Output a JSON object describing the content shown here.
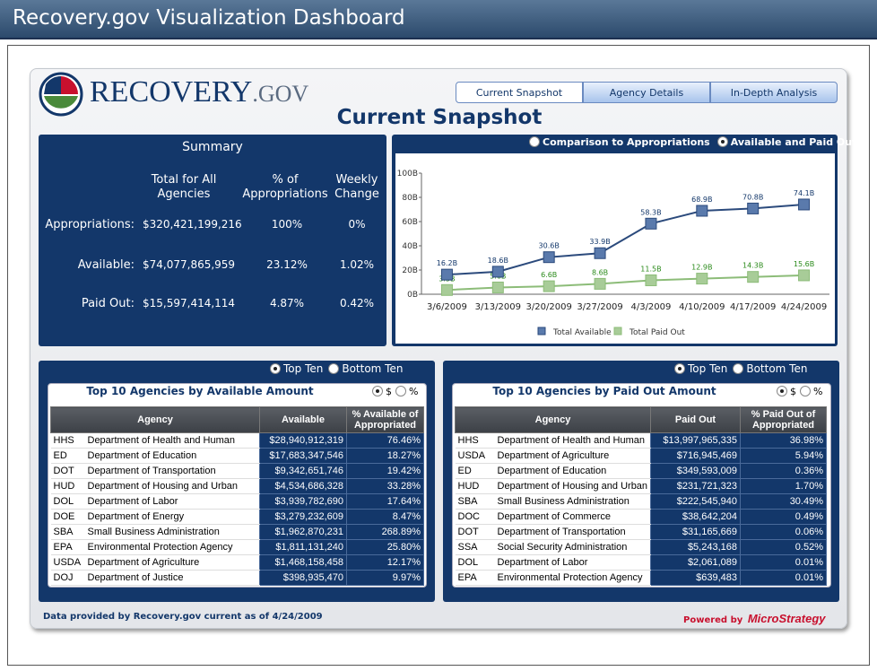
{
  "header": {
    "title": "Recovery.gov Visualization Dashboard"
  },
  "logo": {
    "name": "RECOVERY",
    "suffix": ".GOV"
  },
  "tabs": [
    "Current Snapshot",
    "Agency Details",
    "In-Depth Analysis"
  ],
  "page_title": "Current Snapshot",
  "summary": {
    "title": "Summary",
    "columns": [
      "Total for All Agencies",
      "% of Appropriations",
      "Weekly Change"
    ],
    "rows": [
      [
        "Appropriations:",
        "$320,421,199,216",
        "100%",
        "0%"
      ],
      [
        "Available:",
        "$74,077,865,959",
        "23.12%",
        "1.02%"
      ],
      [
        "Paid Out:",
        "$15,597,414,114",
        "4.87%",
        "0.42%"
      ]
    ]
  },
  "chart_options": [
    "Comparison to Appropriations",
    "Available and Paid Out"
  ],
  "chart_data": {
    "type": "line",
    "categories": [
      "3/6/2009",
      "3/13/2009",
      "3/20/2009",
      "3/27/2009",
      "4/3/2009",
      "4/10/2009",
      "4/17/2009",
      "4/24/2009"
    ],
    "ylim": [
      0,
      100
    ],
    "yticks": [
      {
        "value": 0,
        "label": "0B"
      },
      {
        "value": 20,
        "label": "20B"
      },
      {
        "value": 40,
        "label": "40B"
      },
      {
        "value": 60,
        "label": "60B"
      },
      {
        "value": 80,
        "label": "80B"
      },
      {
        "value": 100,
        "label": "100B"
      }
    ],
    "series": [
      {
        "name": "Total Available",
        "color": "#2b4a7c",
        "values": [
          16.2,
          18.6,
          30.6,
          33.9,
          58.3,
          68.9,
          70.8,
          74.1
        ],
        "value_labels": [
          "16.2B",
          "18.6B",
          "30.6B",
          "33.9B",
          "58.3B",
          "68.9B",
          "70.8B",
          "74.1B"
        ]
      },
      {
        "name": "Total Paid Out",
        "color": "#8cbc78",
        "values": [
          3.5,
          5.6,
          6.6,
          8.6,
          11.5,
          12.9,
          14.3,
          15.6
        ],
        "value_labels": [
          "3.5B",
          "5.6B",
          "6.6B",
          "8.6B",
          "11.5B",
          "12.9B",
          "14.3B",
          "15.6B"
        ]
      }
    ]
  },
  "available_table": {
    "toggle": [
      "Top Ten",
      "Bottom Ten"
    ],
    "title": "Top 10 Agencies by Available Amount",
    "units": [
      "$",
      "%"
    ],
    "columns": [
      "Agency",
      "Available",
      "% Available of Appropriated"
    ],
    "rows": [
      [
        "HHS",
        "Department of Health and Human",
        "$28,940,912,319",
        "76.46%"
      ],
      [
        "ED",
        "Department of Education",
        "$17,683,347,546",
        "18.27%"
      ],
      [
        "DOT",
        "Department of Transportation",
        "$9,342,651,746",
        "19.42%"
      ],
      [
        "HUD",
        "Department of Housing and Urban",
        "$4,534,686,328",
        "33.28%"
      ],
      [
        "DOL",
        "Department of Labor",
        "$3,939,782,690",
        "17.64%"
      ],
      [
        "DOE",
        "Department of Energy",
        "$3,279,232,609",
        "8.47%"
      ],
      [
        "SBA",
        "Small Business Administration",
        "$1,962,870,231",
        "268.89%"
      ],
      [
        "EPA",
        "Environmental Protection Agency",
        "$1,811,131,240",
        "25.80%"
      ],
      [
        "USDA",
        "Department of Agriculture",
        "$1,468,158,458",
        "12.17%"
      ],
      [
        "DOJ",
        "Department of Justice",
        "$398,935,470",
        "9.97%"
      ]
    ]
  },
  "paid_table": {
    "toggle": [
      "Top Ten",
      "Bottom Ten"
    ],
    "title": "Top 10 Agencies by Paid Out Amount",
    "units": [
      "$",
      "%"
    ],
    "columns": [
      "Agency",
      "Paid Out",
      "% Paid Out of Appropriated"
    ],
    "rows": [
      [
        "HHS",
        "Department of Health and Human",
        "$13,997,965,335",
        "36.98%"
      ],
      [
        "USDA",
        "Department of Agriculture",
        "$716,945,469",
        "5.94%"
      ],
      [
        "ED",
        "Department of Education",
        "$349,593,009",
        "0.36%"
      ],
      [
        "HUD",
        "Department of Housing and Urban",
        "$231,721,323",
        "1.70%"
      ],
      [
        "SBA",
        "Small Business Administration",
        "$222,545,940",
        "30.49%"
      ],
      [
        "DOC",
        "Department of Commerce",
        "$38,642,204",
        "0.49%"
      ],
      [
        "DOT",
        "Department of Transportation",
        "$31,165,669",
        "0.06%"
      ],
      [
        "SSA",
        "Social Security Administration",
        "$5,243,168",
        "0.52%"
      ],
      [
        "DOL",
        "Department of Labor",
        "$2,061,089",
        "0.01%"
      ],
      [
        "EPA",
        "Environmental Protection Agency",
        "$639,483",
        "0.01%"
      ]
    ]
  },
  "footer": {
    "note": "Data provided by Recovery.gov current as of 4/24/2009",
    "powered_by": "Powered by",
    "brand": "MicroStrategy"
  }
}
